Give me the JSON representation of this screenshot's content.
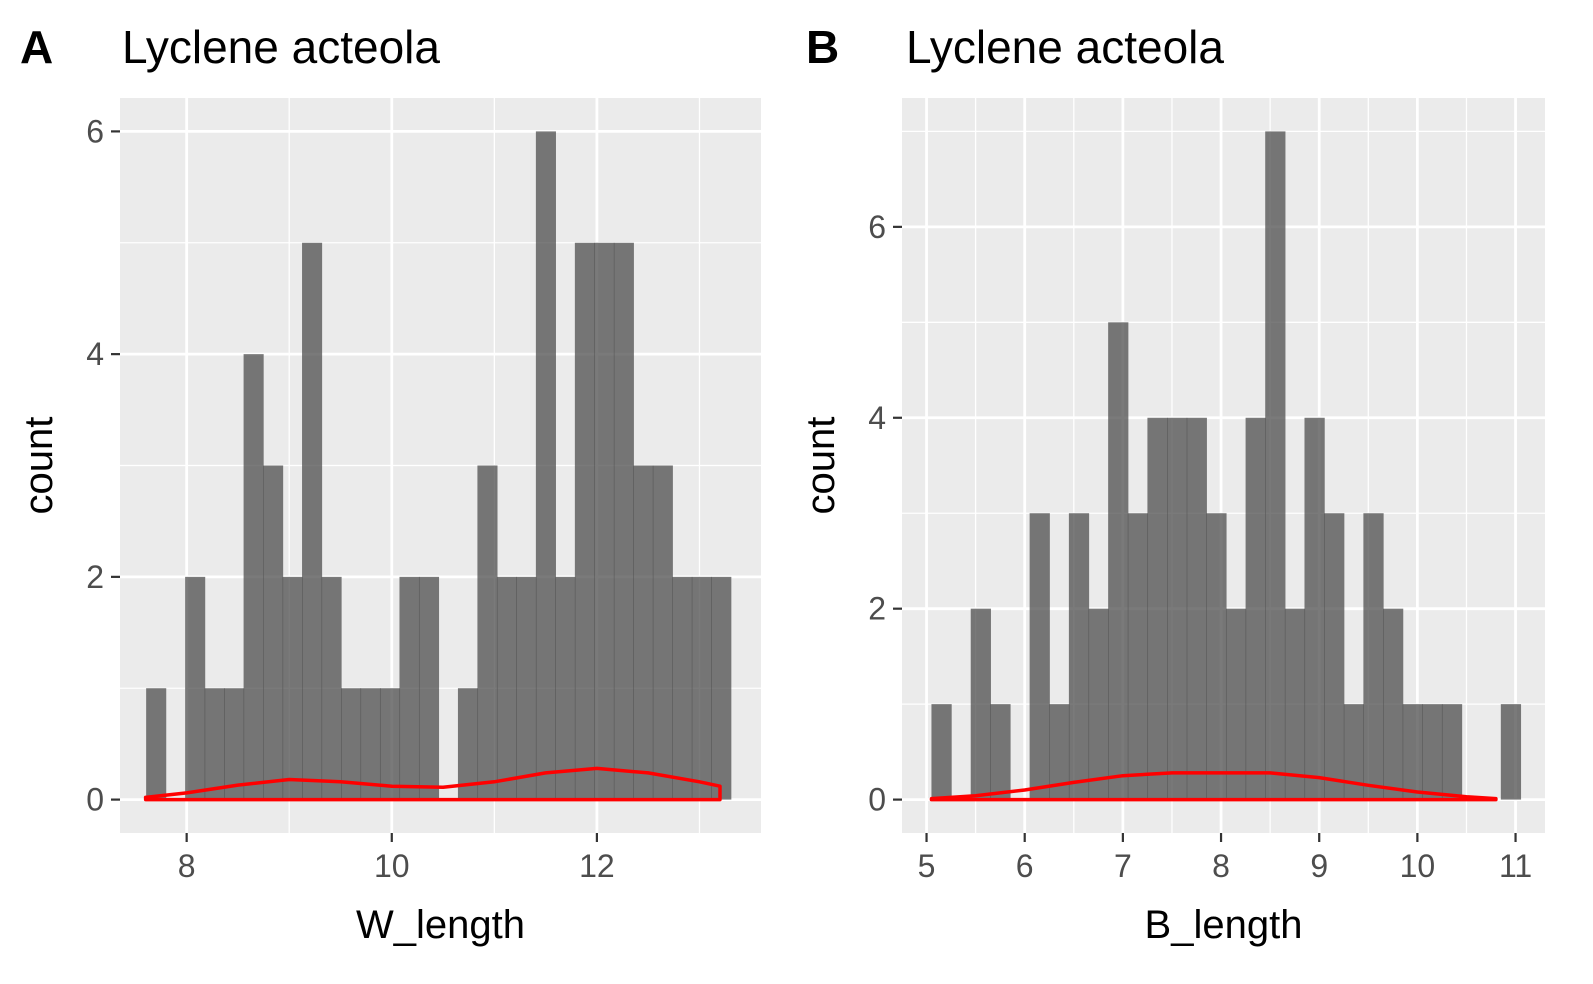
{
  "chart_data": [
    {
      "type": "bar",
      "panel_label": "A",
      "title": "Lyclene acteola",
      "xlabel": "W_length",
      "ylabel": "count",
      "xlim": [
        7.35,
        13.6
      ],
      "ylim": [
        -0.3,
        6.3
      ],
      "xticks": [
        8,
        10,
        12
      ],
      "yticks": [
        0,
        2,
        4,
        6
      ],
      "bar_width": 0.19,
      "bins": [
        {
          "x": 7.7,
          "count": 1
        },
        {
          "x": 7.89,
          "count": 0
        },
        {
          "x": 8.08,
          "count": 2
        },
        {
          "x": 8.27,
          "count": 1
        },
        {
          "x": 8.46,
          "count": 1
        },
        {
          "x": 8.65,
          "count": 4
        },
        {
          "x": 8.84,
          "count": 3
        },
        {
          "x": 9.03,
          "count": 2
        },
        {
          "x": 9.22,
          "count": 5
        },
        {
          "x": 9.41,
          "count": 2
        },
        {
          "x": 9.6,
          "count": 1
        },
        {
          "x": 9.79,
          "count": 1
        },
        {
          "x": 9.98,
          "count": 1
        },
        {
          "x": 10.17,
          "count": 2
        },
        {
          "x": 10.36,
          "count": 2
        },
        {
          "x": 10.55,
          "count": 0
        },
        {
          "x": 10.74,
          "count": 1
        },
        {
          "x": 10.93,
          "count": 3
        },
        {
          "x": 11.12,
          "count": 2
        },
        {
          "x": 11.31,
          "count": 2
        },
        {
          "x": 11.5,
          "count": 6
        },
        {
          "x": 11.69,
          "count": 2
        },
        {
          "x": 11.88,
          "count": 5
        },
        {
          "x": 12.07,
          "count": 5
        },
        {
          "x": 12.26,
          "count": 5
        },
        {
          "x": 12.45,
          "count": 3
        },
        {
          "x": 12.64,
          "count": 3
        },
        {
          "x": 12.83,
          "count": 2
        },
        {
          "x": 13.02,
          "count": 2
        },
        {
          "x": 13.21,
          "count": 2
        }
      ],
      "density": {
        "color": "#ff0000",
        "x": [
          7.6,
          8.0,
          8.5,
          9.0,
          9.5,
          10.0,
          10.5,
          11.0,
          11.5,
          12.0,
          12.5,
          13.0,
          13.2
        ],
        "y": [
          0.02,
          0.06,
          0.13,
          0.18,
          0.16,
          0.12,
          0.11,
          0.16,
          0.24,
          0.28,
          0.24,
          0.16,
          0.12
        ]
      },
      "colors": {
        "bar": "#4d4d4d",
        "panel_background": "#ebebeb",
        "grid": "#ffffff"
      }
    },
    {
      "type": "bar",
      "panel_label": "B",
      "title": "Lyclene acteola",
      "xlabel": "B_length",
      "ylabel": "count",
      "xlim": [
        4.75,
        11.3
      ],
      "ylim": [
        -0.35,
        7.35
      ],
      "xticks": [
        5,
        6,
        7,
        8,
        9,
        10,
        11
      ],
      "yticks": [
        0,
        2,
        4,
        6
      ],
      "bar_width": 0.2,
      "bins": [
        {
          "x": 5.15,
          "count": 1
        },
        {
          "x": 5.35,
          "count": 0
        },
        {
          "x": 5.55,
          "count": 2
        },
        {
          "x": 5.75,
          "count": 1
        },
        {
          "x": 5.95,
          "count": 0
        },
        {
          "x": 6.15,
          "count": 3
        },
        {
          "x": 6.35,
          "count": 1
        },
        {
          "x": 6.55,
          "count": 3
        },
        {
          "x": 6.75,
          "count": 2
        },
        {
          "x": 6.95,
          "count": 5
        },
        {
          "x": 7.15,
          "count": 3
        },
        {
          "x": 7.35,
          "count": 4
        },
        {
          "x": 7.55,
          "count": 4
        },
        {
          "x": 7.75,
          "count": 4
        },
        {
          "x": 7.95,
          "count": 3
        },
        {
          "x": 8.15,
          "count": 2
        },
        {
          "x": 8.35,
          "count": 4
        },
        {
          "x": 8.55,
          "count": 7
        },
        {
          "x": 8.75,
          "count": 2
        },
        {
          "x": 8.95,
          "count": 4
        },
        {
          "x": 9.15,
          "count": 3
        },
        {
          "x": 9.35,
          "count": 1
        },
        {
          "x": 9.55,
          "count": 3
        },
        {
          "x": 9.75,
          "count": 2
        },
        {
          "x": 9.95,
          "count": 1
        },
        {
          "x": 10.15,
          "count": 1
        },
        {
          "x": 10.35,
          "count": 1
        },
        {
          "x": 10.55,
          "count": 0
        },
        {
          "x": 10.75,
          "count": 0
        },
        {
          "x": 10.95,
          "count": 1
        }
      ],
      "density": {
        "color": "#ff0000",
        "x": [
          5.05,
          5.5,
          6.0,
          6.5,
          7.0,
          7.5,
          8.0,
          8.5,
          9.0,
          9.5,
          10.0,
          10.5,
          10.8
        ],
        "y": [
          0.01,
          0.04,
          0.1,
          0.18,
          0.25,
          0.28,
          0.28,
          0.28,
          0.23,
          0.15,
          0.08,
          0.03,
          0.01
        ]
      },
      "colors": {
        "bar": "#4d4d4d",
        "panel_background": "#ebebeb",
        "grid": "#ffffff"
      }
    }
  ]
}
